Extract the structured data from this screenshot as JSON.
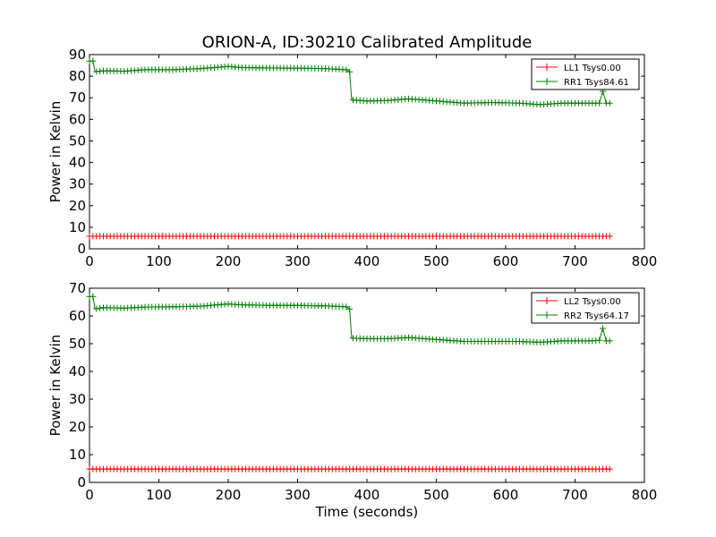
{
  "figure": {
    "title": "ORION-A, ID:30210 Calibrated Amplitude",
    "xlabel": "Time (seconds)"
  },
  "chart_data": [
    {
      "type": "line",
      "ylabel": "Power in Kelvin",
      "xlim": [
        0,
        800
      ],
      "ylim": [
        0,
        90
      ],
      "xticks": [
        0,
        100,
        200,
        300,
        400,
        500,
        600,
        700,
        800
      ],
      "yticks": [
        0,
        10,
        20,
        30,
        40,
        50,
        60,
        70,
        80,
        90
      ],
      "grid": false,
      "legend_placement": "top-right",
      "series": [
        {
          "name": "LL1 Tsys0.00",
          "color": "#ff0000",
          "marker": "plus",
          "points": [
            [
              0,
              5.8
            ],
            [
              750,
              5.8
            ]
          ]
        },
        {
          "name": "RR1 Tsys84.61",
          "color": "#008000",
          "marker": "plus",
          "points": [
            [
              0,
              87
            ],
            [
              5,
              87
            ],
            [
              8,
              82
            ],
            [
              20,
              82.5
            ],
            [
              50,
              82.3
            ],
            [
              80,
              83
            ],
            [
              120,
              83
            ],
            [
              160,
              83.5
            ],
            [
              200,
              84.5
            ],
            [
              220,
              84
            ],
            [
              260,
              83.8
            ],
            [
              300,
              83.7
            ],
            [
              340,
              83.5
            ],
            [
              370,
              83
            ],
            [
              375,
              82
            ],
            [
              378,
              69
            ],
            [
              400,
              68.5
            ],
            [
              430,
              68.7
            ],
            [
              460,
              69.5
            ],
            [
              500,
              68.5
            ],
            [
              540,
              67.5
            ],
            [
              580,
              67.8
            ],
            [
              620,
              67.5
            ],
            [
              650,
              66.8
            ],
            [
              680,
              67.5
            ],
            [
              720,
              67.5
            ],
            [
              735,
              67.5
            ],
            [
              740,
              73
            ],
            [
              745,
              67.5
            ],
            [
              750,
              67.5
            ]
          ]
        }
      ]
    },
    {
      "type": "line",
      "ylabel": "Power in Kelvin",
      "xlim": [
        0,
        800
      ],
      "ylim": [
        0,
        70
      ],
      "xticks": [
        0,
        100,
        200,
        300,
        400,
        500,
        600,
        700,
        800
      ],
      "yticks": [
        0,
        10,
        20,
        30,
        40,
        50,
        60,
        70
      ],
      "grid": false,
      "legend_placement": "top-right",
      "series": [
        {
          "name": "LL2 Tsys0.00",
          "color": "#ff0000",
          "marker": "plus",
          "points": [
            [
              0,
              4.8
            ],
            [
              750,
              4.8
            ]
          ]
        },
        {
          "name": "RR2 Tsys64.17",
          "color": "#008000",
          "marker": "plus",
          "points": [
            [
              0,
              67
            ],
            [
              5,
              67
            ],
            [
              8,
              62.5
            ],
            [
              20,
              63
            ],
            [
              50,
              62.8
            ],
            [
              80,
              63.2
            ],
            [
              120,
              63.3
            ],
            [
              160,
              63.5
            ],
            [
              200,
              64.3
            ],
            [
              220,
              64
            ],
            [
              260,
              63.8
            ],
            [
              300,
              63.8
            ],
            [
              340,
              63.6
            ],
            [
              370,
              63.3
            ],
            [
              375,
              62.5
            ],
            [
              378,
              52
            ],
            [
              400,
              51.8
            ],
            [
              430,
              51.8
            ],
            [
              460,
              52.2
            ],
            [
              500,
              51.5
            ],
            [
              540,
              50.8
            ],
            [
              580,
              50.8
            ],
            [
              620,
              50.8
            ],
            [
              650,
              50.5
            ],
            [
              680,
              51
            ],
            [
              720,
              51
            ],
            [
              735,
              51.2
            ],
            [
              740,
              55.5
            ],
            [
              745,
              51
            ],
            [
              750,
              51
            ]
          ]
        }
      ]
    }
  ]
}
